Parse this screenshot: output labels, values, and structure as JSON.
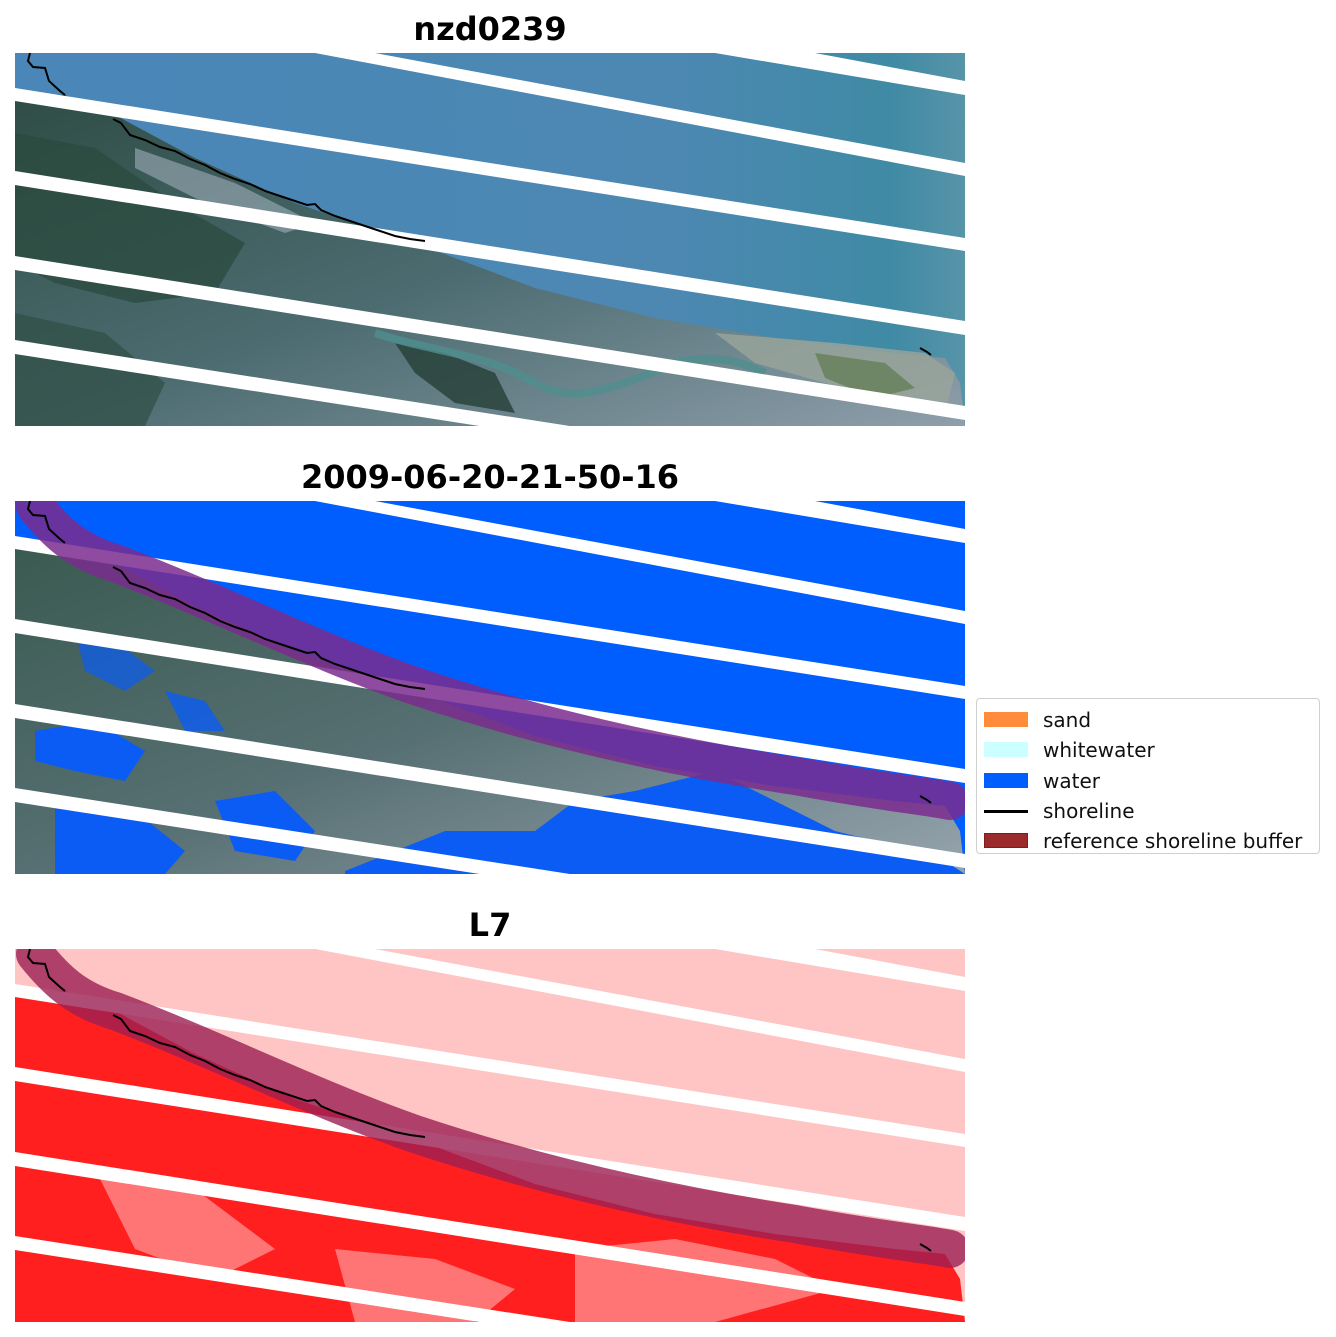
{
  "panels": [
    {
      "title": "nzd0239"
    },
    {
      "title": "2009-06-20-21-50-16"
    },
    {
      "title": "L7"
    }
  ],
  "legend": {
    "items": [
      {
        "label": "sand",
        "kind": "patch",
        "color": "#ff8c3a"
      },
      {
        "label": "whitewater",
        "kind": "patch",
        "color": "#ccffff"
      },
      {
        "label": "water",
        "kind": "patch",
        "color": "#005eff"
      },
      {
        "label": "shoreline",
        "kind": "line",
        "color": "#000000"
      },
      {
        "label": "reference shoreline buffer",
        "kind": "patch",
        "color": "#9b2b2b",
        "edge": "#7a1f1f"
      }
    ]
  },
  "colors": {
    "water": "#005eff",
    "sea_rgb": "#4a86b3",
    "land_rgb": "#3f5f62",
    "classified_water": "#0a5cf5",
    "buffer_overlay": "#7a2b8e",
    "cloud_mask_land": "#ff1f1f",
    "cloud_mask_sea": "#ffc4c4",
    "shoreline": "#000000",
    "scanline_gap": "#ffffff"
  }
}
